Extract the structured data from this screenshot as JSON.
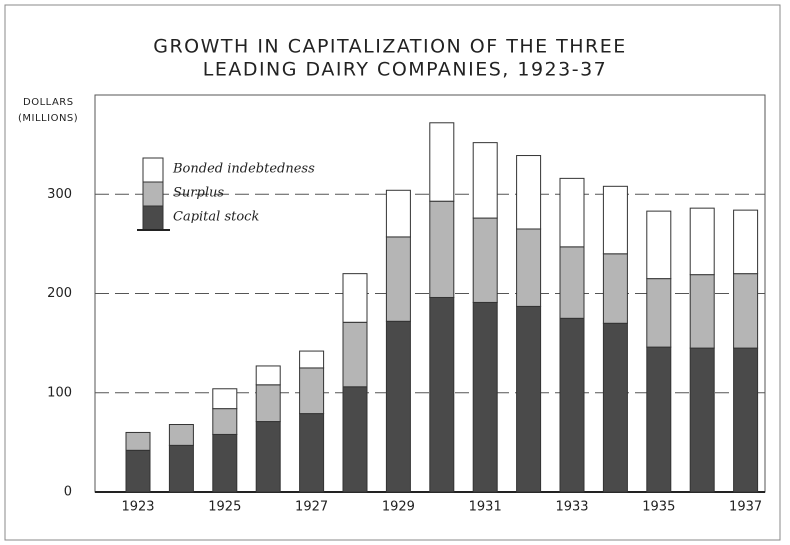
{
  "chart_data": {
    "type": "stacked_bar",
    "title": [
      "GROWTH IN CAPITALIZATION OF THE THREE",
      "LEADING DAIRY COMPANIES, 1923-37"
    ],
    "y_label": [
      "DOLLARS",
      "(MILLIONS)"
    ],
    "categories": [
      "1923",
      null,
      "1925",
      null,
      "1927",
      null,
      "1929",
      null,
      "1931",
      null,
      "1933",
      null,
      "1935",
      null,
      "1937"
    ],
    "series": [
      {
        "name": "Capital stock",
        "color": "#4a4a4a",
        "values": [
          42,
          47,
          58,
          71,
          79,
          106,
          172,
          196,
          191,
          187,
          175,
          170,
          146,
          145,
          145
        ]
      },
      {
        "name": "Surplus",
        "color": "#b5b5b5",
        "values": [
          18,
          21,
          26,
          37,
          46,
          65,
          85,
          97,
          85,
          78,
          72,
          70,
          69,
          74,
          75
        ]
      },
      {
        "name": "Bonded indebtedness",
        "color": "#ffffff",
        "values": [
          0,
          0,
          20,
          19,
          17,
          49,
          47,
          79,
          76,
          74,
          69,
          68,
          68,
          67,
          64
        ]
      }
    ],
    "ylim": [
      0,
      400
    ],
    "yticks": [
      0,
      100,
      200,
      300
    ],
    "grid": true
  }
}
